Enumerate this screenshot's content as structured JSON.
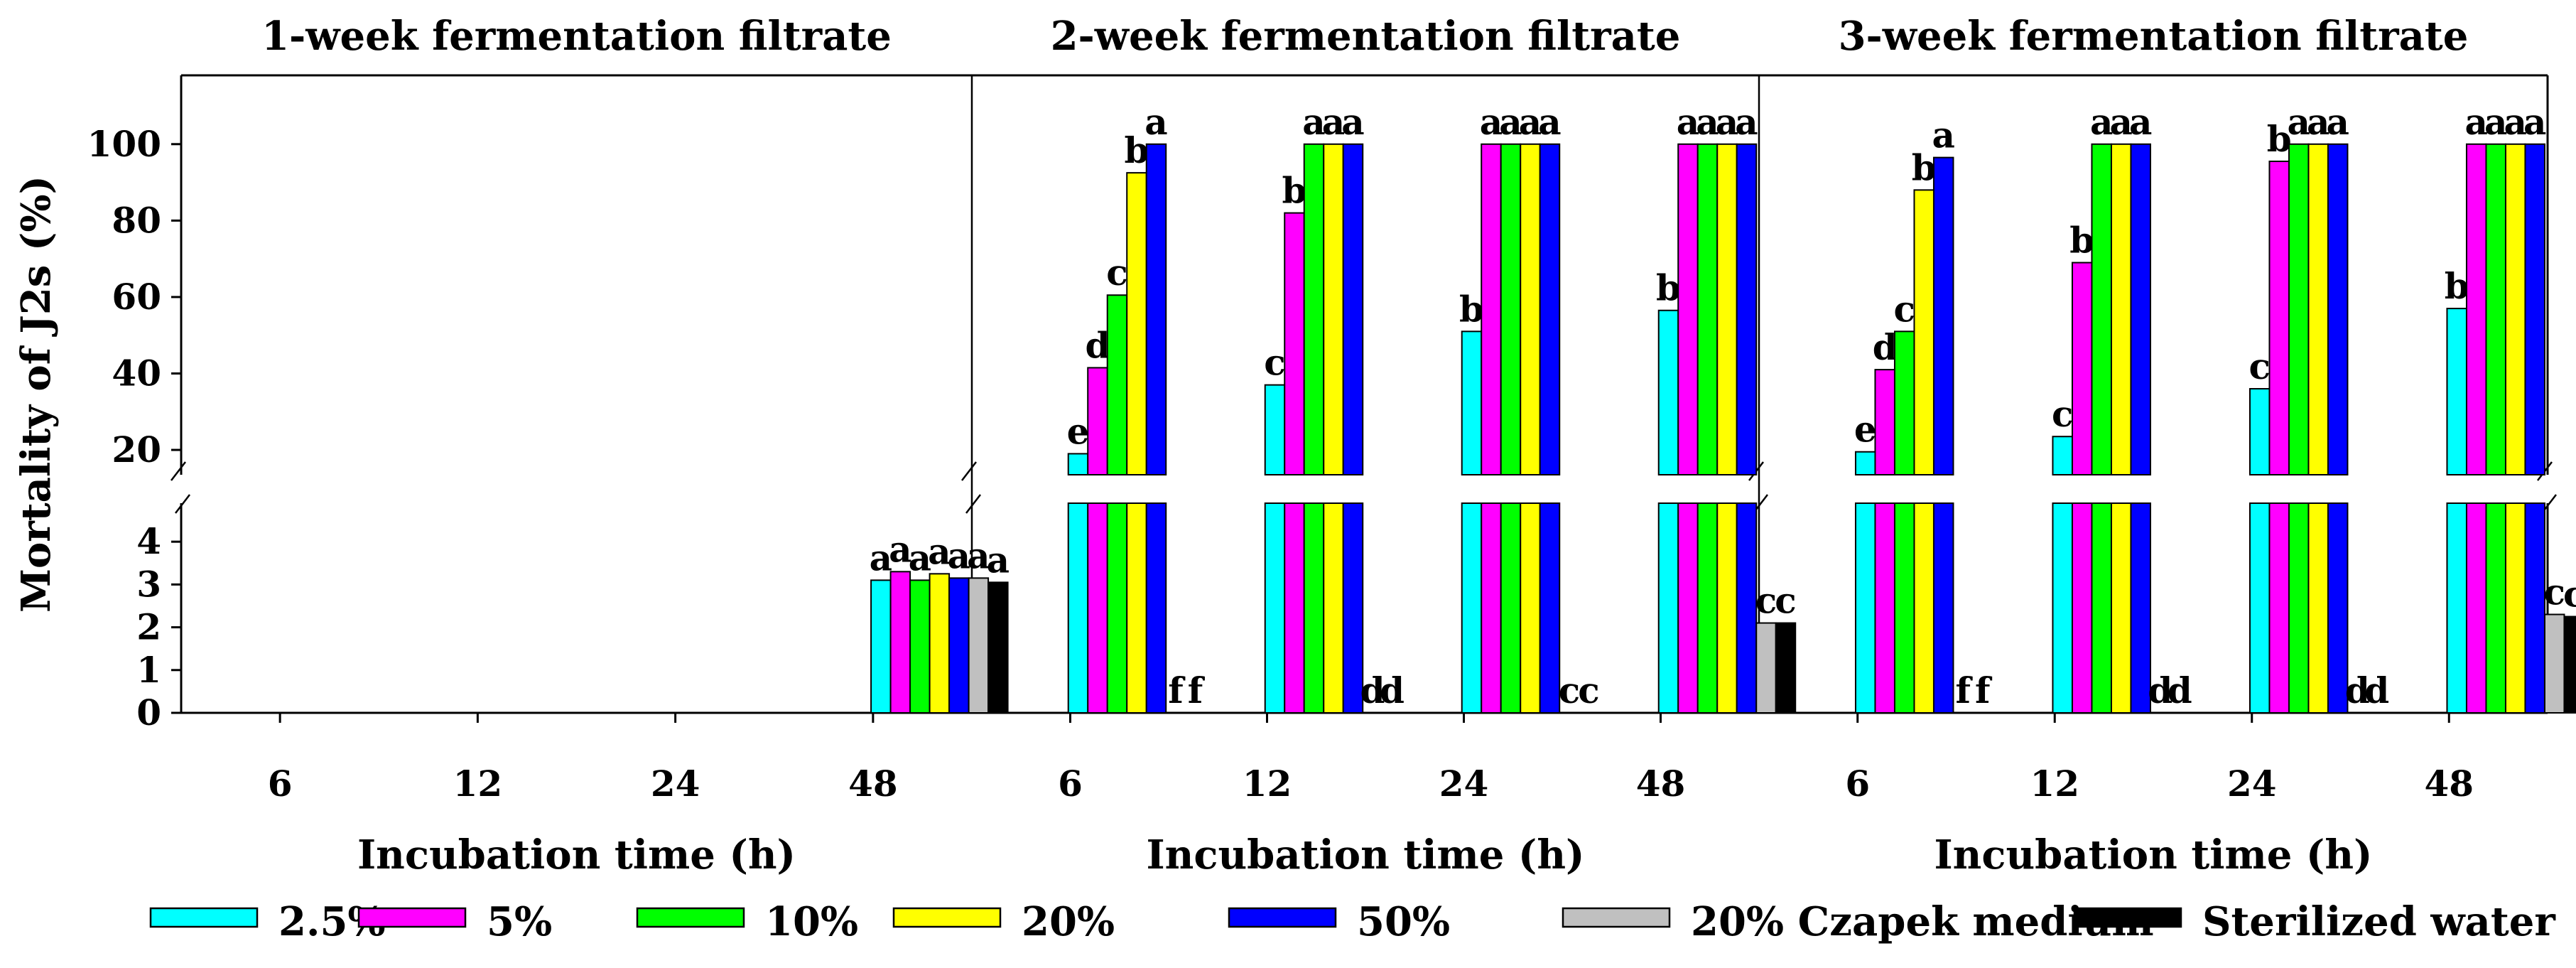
{
  "chart_data": {
    "type": "bar",
    "ylabel": "Mortality of J2s (%)",
    "xlabel": "Incubation time (h)",
    "categories": [
      "6",
      "12",
      "24",
      "48"
    ],
    "yticks_upper": [
      20,
      40,
      60,
      80,
      100
    ],
    "yticks_lower": [
      0,
      1,
      2,
      3,
      4
    ],
    "upper_range": [
      13.5,
      118
    ],
    "lower_range": [
      0,
      4.9
    ],
    "colors": {
      "2.5%": "#00ffff",
      "5%": "#ff00ff",
      "10%": "#00ff00",
      "20%": "#ffff00",
      "50%": "#0000ff",
      "20% Czapek medium": "#c0c0c0",
      "Sterilized water": "#000000"
    },
    "legend": {
      "position": "bottom",
      "entries": [
        "2.5%",
        "5%",
        "10%",
        "20%",
        "50%",
        "20% Czapek medium",
        "Sterilized water"
      ]
    },
    "panels": [
      {
        "title": "1-week fermentation filtrate",
        "series": [
          {
            "name": "2.5%",
            "values": [
              0,
              0,
              0,
              3.1
            ],
            "letters": [
              "",
              "",
              "",
              "a"
            ]
          },
          {
            "name": "5%",
            "values": [
              0,
              0,
              0,
              3.3
            ],
            "letters": [
              "",
              "",
              "",
              "a"
            ]
          },
          {
            "name": "10%",
            "values": [
              0,
              0,
              0,
              3.1
            ],
            "letters": [
              "",
              "",
              "",
              "a"
            ]
          },
          {
            "name": "20%",
            "values": [
              0,
              0,
              0,
              3.25
            ],
            "letters": [
              "",
              "",
              "",
              "a"
            ]
          },
          {
            "name": "50%",
            "values": [
              0,
              0,
              0,
              3.15
            ],
            "letters": [
              "",
              "",
              "",
              "a"
            ]
          },
          {
            "name": "20% Czapek medium",
            "values": [
              0,
              0,
              0,
              3.15
            ],
            "letters": [
              "",
              "",
              "",
              "a"
            ]
          },
          {
            "name": "Sterilized water",
            "values": [
              0,
              0,
              0,
              3.05
            ],
            "letters": [
              "",
              "",
              "",
              "a"
            ]
          }
        ]
      },
      {
        "title": "2-week fermentation filtrate",
        "series": [
          {
            "name": "2.5%",
            "values": [
              19,
              37,
              51,
              56.5
            ],
            "letters": [
              "e",
              "c",
              "b",
              "b"
            ]
          },
          {
            "name": "5%",
            "values": [
              41.5,
              82,
              100,
              100
            ],
            "letters": [
              "d",
              "b",
              "a",
              "a"
            ]
          },
          {
            "name": "10%",
            "values": [
              60.5,
              100,
              100,
              100
            ],
            "letters": [
              "c",
              "a",
              "a",
              "a"
            ]
          },
          {
            "name": "20%",
            "values": [
              92.5,
              100,
              100,
              100
            ],
            "letters": [
              "b",
              "a",
              "a",
              "a"
            ]
          },
          {
            "name": "50%",
            "values": [
              100,
              100,
              100,
              100
            ],
            "letters": [
              "a",
              "a",
              "a",
              "a"
            ]
          },
          {
            "name": "20% Czapek medium",
            "values": [
              0,
              0,
              0,
              2.1
            ],
            "letters": [
              "f",
              "d",
              "c",
              "c"
            ]
          },
          {
            "name": "Sterilized water",
            "values": [
              0,
              0,
              0,
              2.1
            ],
            "letters": [
              "f",
              "d",
              "c",
              "c"
            ]
          }
        ]
      },
      {
        "title": "3-week fermentation filtrate",
        "series": [
          {
            "name": "2.5%",
            "values": [
              19.5,
              23.5,
              36,
              57
            ],
            "letters": [
              "e",
              "c",
              "c",
              "b"
            ]
          },
          {
            "name": "5%",
            "values": [
              41,
              69,
              95.5,
              100
            ],
            "letters": [
              "d",
              "b",
              "b",
              "a"
            ]
          },
          {
            "name": "10%",
            "values": [
              51,
              100,
              100,
              100
            ],
            "letters": [
              "c",
              "a",
              "a",
              "a"
            ]
          },
          {
            "name": "20%",
            "values": [
              88,
              100,
              100,
              100
            ],
            "letters": [
              "b",
              "a",
              "a",
              "a"
            ]
          },
          {
            "name": "50%",
            "values": [
              96.5,
              100,
              100,
              100
            ],
            "letters": [
              "a",
              "a",
              "a",
              "a"
            ]
          },
          {
            "name": "20% Czapek medium",
            "values": [
              0,
              0,
              0,
              2.3
            ],
            "letters": [
              "f",
              "d",
              "d",
              "c"
            ]
          },
          {
            "name": "Sterilized water",
            "values": [
              0,
              0,
              0,
              2.25
            ],
            "letters": [
              "f",
              "d",
              "d",
              "c"
            ]
          }
        ]
      }
    ]
  }
}
